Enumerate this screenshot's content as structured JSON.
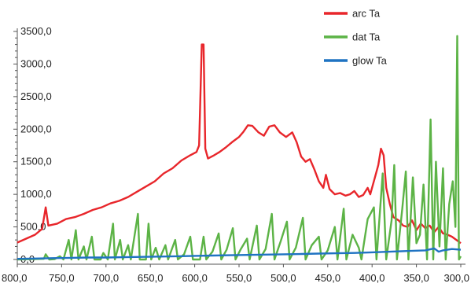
{
  "chart_data": {
    "type": "line",
    "title": "",
    "xlabel": "",
    "ylabel": "",
    "x_reversed": true,
    "xlim": [
      800,
      300
    ],
    "ylim": [
      0,
      3500
    ],
    "grid": false,
    "legend_position": "top-right",
    "x_tick_labels": [
      "800,0",
      "750,0",
      "700,0",
      "650,0",
      "600,0",
      "550,0",
      "500,0",
      "450,0",
      "400,0",
      "350,0",
      "300,0"
    ],
    "x_tick_values": [
      800,
      750,
      700,
      650,
      600,
      550,
      500,
      450,
      400,
      350,
      300
    ],
    "y_tick_labels": [
      "0,0",
      "500,0",
      "1000,0",
      "1500,0",
      "2000,0",
      "2500,0",
      "3000,0",
      "3500,0"
    ],
    "y_tick_values": [
      0,
      500,
      1000,
      1500,
      2000,
      2500,
      3000,
      3500
    ],
    "series": [
      {
        "name": "arc Ta",
        "color": "#e8262b",
        "points": [
          [
            800,
            260
          ],
          [
            790,
            320
          ],
          [
            780,
            380
          ],
          [
            772,
            470
          ],
          [
            768,
            800
          ],
          [
            765,
            520
          ],
          [
            755,
            550
          ],
          [
            745,
            620
          ],
          [
            735,
            650
          ],
          [
            725,
            700
          ],
          [
            715,
            760
          ],
          [
            705,
            800
          ],
          [
            695,
            860
          ],
          [
            685,
            900
          ],
          [
            675,
            960
          ],
          [
            665,
            1040
          ],
          [
            655,
            1120
          ],
          [
            645,
            1200
          ],
          [
            635,
            1320
          ],
          [
            625,
            1400
          ],
          [
            615,
            1520
          ],
          [
            605,
            1600
          ],
          [
            598,
            1650
          ],
          [
            595,
            1750
          ],
          [
            592,
            3300
          ],
          [
            590,
            3300
          ],
          [
            588,
            1700
          ],
          [
            585,
            1550
          ],
          [
            578,
            1600
          ],
          [
            572,
            1650
          ],
          [
            565,
            1720
          ],
          [
            558,
            1800
          ],
          [
            550,
            1880
          ],
          [
            545,
            1960
          ],
          [
            540,
            2060
          ],
          [
            535,
            2050
          ],
          [
            528,
            1950
          ],
          [
            522,
            1900
          ],
          [
            516,
            2040
          ],
          [
            510,
            2060
          ],
          [
            504,
            1950
          ],
          [
            497,
            1880
          ],
          [
            490,
            1950
          ],
          [
            485,
            1800
          ],
          [
            480,
            1580
          ],
          [
            475,
            1500
          ],
          [
            470,
            1540
          ],
          [
            465,
            1380
          ],
          [
            460,
            1200
          ],
          [
            455,
            1100
          ],
          [
            452,
            1300
          ],
          [
            448,
            1080
          ],
          [
            442,
            1000
          ],
          [
            436,
            1020
          ],
          [
            430,
            980
          ],
          [
            425,
            1000
          ],
          [
            420,
            1050
          ],
          [
            415,
            960
          ],
          [
            410,
            990
          ],
          [
            405,
            1100
          ],
          [
            402,
            1000
          ],
          [
            397,
            1250
          ],
          [
            393,
            1450
          ],
          [
            390,
            1700
          ],
          [
            387,
            1600
          ],
          [
            384,
            1100
          ],
          [
            380,
            850
          ],
          [
            376,
            650
          ],
          [
            370,
            600
          ],
          [
            365,
            520
          ],
          [
            360,
            500
          ],
          [
            355,
            600
          ],
          [
            350,
            450
          ],
          [
            345,
            550
          ],
          [
            340,
            480
          ],
          [
            335,
            520
          ],
          [
            330,
            420
          ],
          [
            325,
            500
          ],
          [
            320,
            400
          ],
          [
            315,
            380
          ],
          [
            310,
            350
          ],
          [
            305,
            300
          ],
          [
            300,
            250
          ]
        ]
      },
      {
        "name": "dat Ta",
        "color": "#5cb346",
        "points": [
          [
            800,
            0
          ],
          [
            770,
            10
          ],
          [
            768,
            80
          ],
          [
            764,
            0
          ],
          [
            758,
            5
          ],
          [
            752,
            50
          ],
          [
            748,
            0
          ],
          [
            742,
            300
          ],
          [
            739,
            0
          ],
          [
            734,
            450
          ],
          [
            731,
            0
          ],
          [
            725,
            200
          ],
          [
            722,
            0
          ],
          [
            716,
            350
          ],
          [
            713,
            0
          ],
          [
            706,
            0
          ],
          [
            703,
            100
          ],
          [
            698,
            0
          ],
          [
            692,
            550
          ],
          [
            690,
            0
          ],
          [
            684,
            300
          ],
          [
            681,
            0
          ],
          [
            675,
            220
          ],
          [
            672,
            0
          ],
          [
            664,
            700
          ],
          [
            662,
            0
          ],
          [
            655,
            0
          ],
          [
            652,
            550
          ],
          [
            649,
            0
          ],
          [
            644,
            180
          ],
          [
            640,
            0
          ],
          [
            633,
            220
          ],
          [
            630,
            0
          ],
          [
            622,
            300
          ],
          [
            619,
            0
          ],
          [
            612,
            80
          ],
          [
            605,
            350
          ],
          [
            602,
            0
          ],
          [
            594,
            0
          ],
          [
            590,
            350
          ],
          [
            587,
            0
          ],
          [
            580,
            120
          ],
          [
            573,
            400
          ],
          [
            570,
            0
          ],
          [
            564,
            150
          ],
          [
            557,
            480
          ],
          [
            554,
            0
          ],
          [
            548,
            160
          ],
          [
            541,
            320
          ],
          [
            538,
            0
          ],
          [
            530,
            520
          ],
          [
            527,
            0
          ],
          [
            520,
            160
          ],
          [
            513,
            700
          ],
          [
            510,
            0
          ],
          [
            503,
            280
          ],
          [
            496,
            580
          ],
          [
            493,
            0
          ],
          [
            486,
            180
          ],
          [
            478,
            640
          ],
          [
            475,
            0
          ],
          [
            468,
            220
          ],
          [
            460,
            350
          ],
          [
            457,
            0
          ],
          [
            450,
            140
          ],
          [
            442,
            500
          ],
          [
            439,
            0
          ],
          [
            432,
            780
          ],
          [
            429,
            0
          ],
          [
            422,
            380
          ],
          [
            415,
            180
          ],
          [
            412,
            0
          ],
          [
            405,
            620
          ],
          [
            398,
            800
          ],
          [
            395,
            0
          ],
          [
            388,
            1320
          ],
          [
            384,
            0
          ],
          [
            378,
            600
          ],
          [
            375,
            1450
          ],
          [
            372,
            0
          ],
          [
            366,
            780
          ],
          [
            362,
            1350
          ],
          [
            359,
            0
          ],
          [
            354,
            1260
          ],
          [
            350,
            250
          ],
          [
            346,
            380
          ],
          [
            342,
            1150
          ],
          [
            338,
            0
          ],
          [
            334,
            2150
          ],
          [
            331,
            0
          ],
          [
            328,
            1500
          ],
          [
            324,
            200
          ],
          [
            320,
            1400
          ],
          [
            317,
            0
          ],
          [
            313,
            850
          ],
          [
            309,
            1200
          ],
          [
            306,
            500
          ],
          [
            304,
            3430
          ],
          [
            302,
            0
          ],
          [
            300,
            50
          ]
        ]
      },
      {
        "name": "glow Ta",
        "color": "#1f73c2",
        "points": [
          [
            800,
            10
          ],
          [
            780,
            15
          ],
          [
            760,
            20
          ],
          [
            740,
            25
          ],
          [
            720,
            30
          ],
          [
            700,
            30
          ],
          [
            680,
            35
          ],
          [
            660,
            40
          ],
          [
            640,
            45
          ],
          [
            620,
            50
          ],
          [
            600,
            55
          ],
          [
            580,
            60
          ],
          [
            560,
            65
          ],
          [
            540,
            70
          ],
          [
            520,
            75
          ],
          [
            500,
            80
          ],
          [
            480,
            85
          ],
          [
            460,
            90
          ],
          [
            440,
            95
          ],
          [
            420,
            100
          ],
          [
            400,
            110
          ],
          [
            380,
            120
          ],
          [
            360,
            130
          ],
          [
            340,
            140
          ],
          [
            330,
            170
          ],
          [
            325,
            120
          ],
          [
            320,
            140
          ],
          [
            310,
            160
          ],
          [
            300,
            150
          ]
        ]
      }
    ]
  }
}
